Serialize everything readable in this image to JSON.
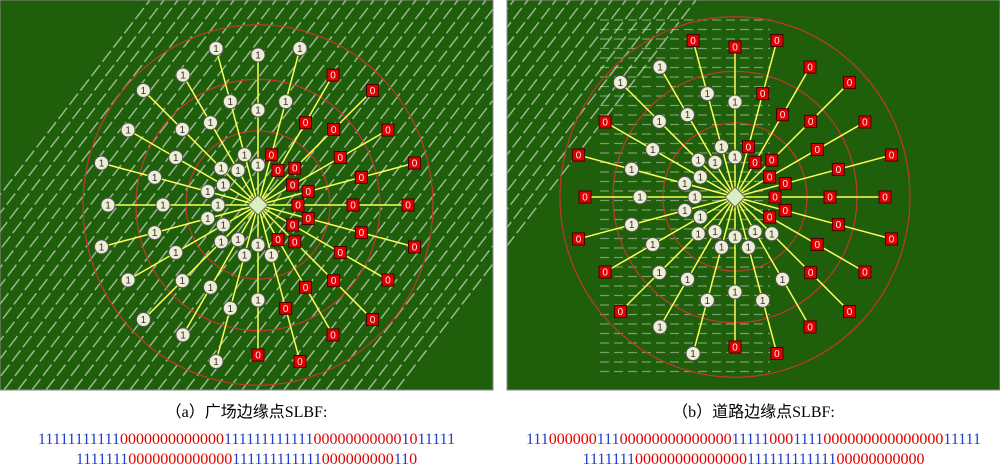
{
  "panels": [
    {
      "caption": "（a）广场边缘点SLBF:",
      "rays": [
        [
          "0",
          "0",
          "0"
        ],
        [
          "0",
          "0",
          "0"
        ],
        [
          "0",
          "0",
          "0"
        ],
        [
          "0",
          "0",
          "0"
        ],
        [
          "0",
          "0",
          "0"
        ],
        [
          "1",
          "0",
          "0"
        ],
        [
          "1",
          "1",
          "0"
        ],
        [
          "1",
          "1",
          "1"
        ],
        [
          "1",
          "1",
          "1"
        ],
        [
          "1",
          "1",
          "1"
        ],
        [
          "1",
          "1",
          "1"
        ],
        [
          "1",
          "1",
          "1"
        ],
        [
          "1",
          "1",
          "1"
        ],
        [
          "1",
          "1",
          "1"
        ],
        [
          "1",
          "1",
          "1"
        ],
        [
          "1",
          "1",
          "1"
        ],
        [
          "1",
          "1",
          "1"
        ],
        [
          "1",
          "1",
          "1"
        ],
        [
          "1",
          "1",
          "1"
        ],
        [
          "0",
          "1",
          "1"
        ],
        [
          "0",
          "0",
          "0"
        ],
        [
          "0",
          "0",
          "0"
        ],
        [
          "0",
          "0",
          "0"
        ],
        [
          "0",
          "0",
          "0"
        ]
      ],
      "code_lines": [
        [
          "11111111111",
          "0000000000000",
          "111111111111",
          "00000000000",
          "1",
          "0",
          "11111"
        ],
        [
          "1111111",
          "0000000000000",
          "111111111111",
          "000000000",
          "11",
          "0"
        ]
      ]
    },
    {
      "caption": "（b）道路边缘点SLBF:",
      "rays": [
        [
          "0",
          "0",
          "0"
        ],
        [
          "0",
          "0",
          "0"
        ],
        [
          "0",
          "0",
          "0"
        ],
        [
          "1",
          "0",
          "0"
        ],
        [
          "1",
          "1",
          "0"
        ],
        [
          "1",
          "1",
          "0"
        ],
        [
          "1",
          "1",
          "0"
        ],
        [
          "1",
          "1",
          "1"
        ],
        [
          "1",
          "1",
          "1"
        ],
        [
          "1",
          "1",
          "0"
        ],
        [
          "1",
          "1",
          "0"
        ],
        [
          "1",
          "1",
          "0"
        ],
        [
          "1",
          "1",
          "0"
        ],
        [
          "1",
          "1",
          "0"
        ],
        [
          "1",
          "1",
          "0"
        ],
        [
          "1",
          "1",
          "1"
        ],
        [
          "1",
          "1",
          "1"
        ],
        [
          "1",
          "1",
          "0"
        ],
        [
          "1",
          "1",
          "0"
        ],
        [
          "0",
          "0",
          "0"
        ],
        [
          "0",
          "0",
          "0"
        ],
        [
          "0",
          "0",
          "0"
        ],
        [
          "0",
          "0",
          "0"
        ],
        [
          "0",
          "0",
          "0"
        ]
      ],
      "code_lines": [
        [
          "111",
          "000000",
          "111",
          "00000000000000",
          "11111",
          "000",
          "1111",
          "000000000000000",
          "11111"
        ],
        [
          "1111111",
          "00000000000000",
          "111111111111",
          "00000000000"
        ]
      ]
    }
  ]
}
